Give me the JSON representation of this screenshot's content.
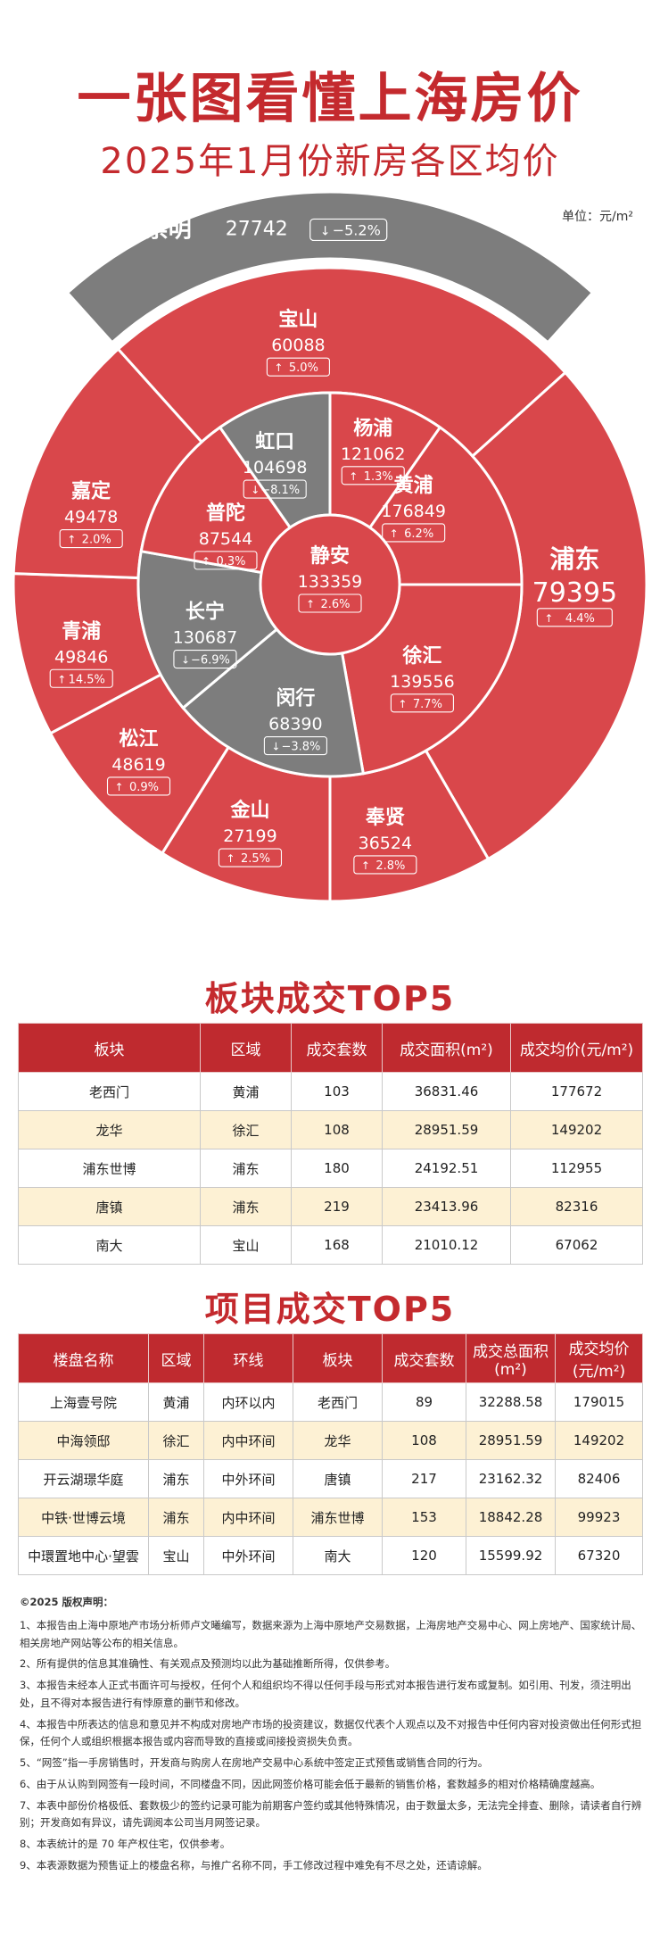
{
  "header": {
    "title": "一张图看懂上海房价",
    "subtitle": "2025年1月份新房各区均价",
    "unit": "单位：元/m²"
  },
  "chart_data": {
    "type": "sunburst",
    "unit": "元/m²",
    "districts": [
      {
        "name": "静安",
        "price": 133359,
        "change": "2.6%",
        "direction": "up",
        "ring": 1,
        "color": "#d9474b"
      },
      {
        "name": "黄浦",
        "price": 176849,
        "change": "6.2%",
        "direction": "up",
        "ring": 2,
        "color": "#d9474b"
      },
      {
        "name": "徐汇",
        "price": 139556,
        "change": "7.7%",
        "direction": "up",
        "ring": 2,
        "color": "#d9474b"
      },
      {
        "name": "闵行",
        "price": 68390,
        "change": "−3.8%",
        "direction": "down",
        "ring": 2,
        "color": "#7d7d7d"
      },
      {
        "name": "长宁",
        "price": 130687,
        "change": "−6.9%",
        "direction": "down",
        "ring": 2,
        "color": "#7d7d7d"
      },
      {
        "name": "普陀",
        "price": 87544,
        "change": "0.3%",
        "direction": "up",
        "ring": 2,
        "color": "#d9474b"
      },
      {
        "name": "虹口",
        "price": 104698,
        "change": "−8.1%",
        "direction": "down",
        "ring": 2,
        "color": "#7d7d7d"
      },
      {
        "name": "杨浦",
        "price": 121062,
        "change": "1.3%",
        "direction": "up",
        "ring": 2,
        "color": "#d9474b"
      },
      {
        "name": "宝山",
        "price": 60088,
        "change": "5.0%",
        "direction": "up",
        "ring": 3,
        "color": "#d9474b"
      },
      {
        "name": "浦东",
        "price": 79395,
        "change": "4.4%",
        "direction": "up",
        "ring": 3,
        "color": "#d9474b"
      },
      {
        "name": "奉贤",
        "price": 36524,
        "change": "2.8%",
        "direction": "up",
        "ring": 3,
        "color": "#d9474b"
      },
      {
        "name": "金山",
        "price": 27199,
        "change": "2.5%",
        "direction": "up",
        "ring": 3,
        "color": "#d9474b"
      },
      {
        "name": "松江",
        "price": 48619,
        "change": "0.9%",
        "direction": "up",
        "ring": 3,
        "color": "#d9474b"
      },
      {
        "name": "青浦",
        "price": 49846,
        "change": "14.5%",
        "direction": "up",
        "ring": 3,
        "color": "#d9474b"
      },
      {
        "name": "嘉定",
        "price": 49478,
        "change": "2.0%",
        "direction": "up",
        "ring": 3,
        "color": "#d9474b"
      },
      {
        "name": "崇明",
        "price": 27742,
        "change": "−5.2%",
        "direction": "down",
        "ring": 4,
        "color": "#7d7d7d"
      }
    ]
  },
  "sector_table": {
    "title": "板块成交TOP5",
    "headers": [
      "板块",
      "区域",
      "成交套数",
      "成交面积(m²)",
      "成交均价(元/m²)"
    ],
    "rows": [
      [
        "老西门",
        "黄浦",
        "103",
        "36831.46",
        "177672"
      ],
      [
        "龙华",
        "徐汇",
        "108",
        "28951.59",
        "149202"
      ],
      [
        "浦东世博",
        "浦东",
        "180",
        "24192.51",
        "112955"
      ],
      [
        "唐镇",
        "浦东",
        "219",
        "23413.96",
        "82316"
      ],
      [
        "南大",
        "宝山",
        "168",
        "21010.12",
        "67062"
      ]
    ]
  },
  "project_table": {
    "title": "项目成交TOP5",
    "headers": [
      "楼盘名称",
      "区域",
      "环线",
      "板块",
      "成交套数",
      "成交总面积(m²)",
      "成交均价(元/m²)"
    ],
    "rows": [
      [
        "上海壹号院",
        "黄浦",
        "内环以内",
        "老西门",
        "89",
        "32288.58",
        "179015"
      ],
      [
        "中海领邸",
        "徐汇",
        "内中环间",
        "龙华",
        "108",
        "28951.59",
        "149202"
      ],
      [
        "开云湖璟华庭",
        "浦东",
        "中外环间",
        "唐镇",
        "217",
        "23162.32",
        "82406"
      ],
      [
        "中铁·世博云境",
        "浦东",
        "内中环间",
        "浦东世博",
        "153",
        "18842.28",
        "99923"
      ],
      [
        "中環置地中心·望雲",
        "宝山",
        "中外环间",
        "南大",
        "120",
        "15599.92",
        "67320"
      ]
    ]
  },
  "notes": {
    "heading": "©2025 版权声明：",
    "items": [
      "1、本报告由上海中原地产市场分析师卢文曦编写，数据来源为上海中原地产交易数据，上海房地产交易中心、网上房地产、国家统计局、相关房地产网站等公布的相关信息。",
      "2、所有提供的信息其准确性、有关观点及预测均以此为基础推断所得，仅供参考。",
      "3、本报告未经本人正式书面许可与授权，任何个人和组织均不得以任何手段与形式对本报告进行发布或复制。如引用、刊发，须注明出处，且不得对本报告进行有悖原意的删节和修改。",
      "4、本报告中所表达的信息和意见并不构成对房地产市场的投资建议，数据仅代表个人观点以及不对报告中任何内容对投资做出任何形式担保，任何个人或组织根据本报告或内容而导致的直接或间接投资损失负责。",
      "5、“网签”指一手房销售时，开发商与购房人在房地产交易中心系统中签定正式预售或销售合同的行为。",
      "6、由于从认购到网签有一段时间，不同楼盘不同，因此网签价格可能会低于最新的销售价格，套数越多的相对价格精确度越高。",
      "7、本表中部份价格极低、套数极少的签约记录可能为前期客户签约或其他特殊情况，由于数量太多，无法完全排查、删除，请读者自行辨别；开发商如有异议，请先调阅本公司当月网签记录。",
      "8、本表统计的是 70 年产权住宅，仅供参考。",
      "9、本表源数据为预售证上的楼盘名称，与推广名称不同，手工修改过程中难免有不尽之处，还请谅解。"
    ]
  }
}
